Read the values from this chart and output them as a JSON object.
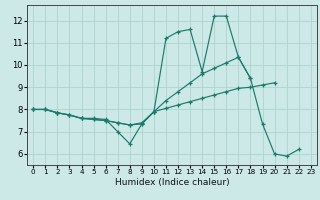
{
  "xlabel": "Humidex (Indice chaleur)",
  "xlim": [
    -0.5,
    23.5
  ],
  "ylim": [
    5.5,
    12.7
  ],
  "xticks": [
    0,
    1,
    2,
    3,
    4,
    5,
    6,
    7,
    8,
    9,
    10,
    11,
    12,
    13,
    14,
    15,
    16,
    17,
    18,
    19,
    20,
    21,
    22,
    23
  ],
  "yticks": [
    6,
    7,
    8,
    9,
    10,
    11,
    12
  ],
  "bg_color": "#cce9e7",
  "line_color": "#1a7a6e",
  "grid_color": "#aed4d0",
  "line1_y": [
    8.0,
    8.0,
    7.85,
    7.75,
    7.6,
    7.6,
    7.55,
    7.0,
    6.45,
    7.35,
    7.9,
    11.2,
    11.5,
    11.6,
    9.7,
    12.2,
    12.2,
    10.35,
    9.4,
    7.35,
    6.0,
    5.9,
    6.2,
    null
  ],
  "line2_y": [
    8.0,
    8.0,
    7.85,
    7.75,
    7.6,
    7.55,
    7.5,
    7.4,
    7.3,
    7.4,
    7.9,
    8.4,
    8.8,
    9.2,
    9.6,
    9.85,
    10.1,
    10.35,
    9.4,
    null,
    null,
    null,
    null,
    null
  ],
  "line3_y": [
    8.0,
    8.0,
    7.85,
    7.75,
    7.6,
    7.55,
    7.5,
    7.4,
    7.3,
    7.35,
    7.9,
    8.05,
    8.2,
    8.35,
    8.5,
    8.65,
    8.8,
    8.95,
    9.0,
    9.1,
    9.2,
    null,
    null,
    null
  ]
}
